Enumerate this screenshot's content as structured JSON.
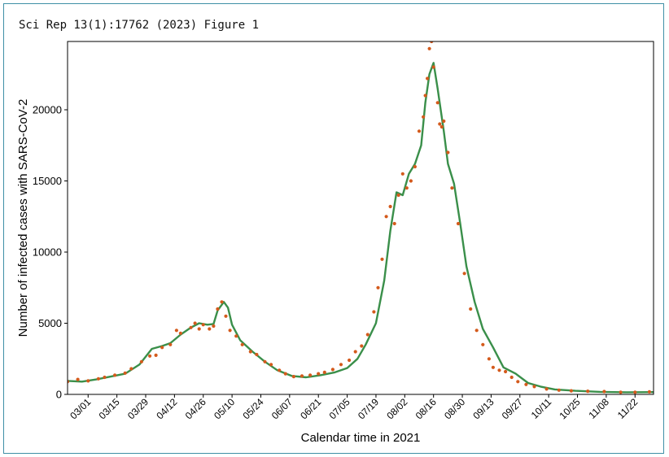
{
  "caption": "Sci Rep 13(1):17762 (2023) Figure 1",
  "chart_data": {
    "type": "line",
    "xlabel": "Calendar time in 2021",
    "ylabel": "Number of infected cases with SARS-CoV-2",
    "xlim": [
      "2021-02-19",
      "2021-12-01"
    ],
    "ylim": [
      0,
      24800
    ],
    "yticks": [
      0,
      5000,
      10000,
      15000,
      20000
    ],
    "xtick_dates": [
      "2021-03-01",
      "2021-03-15",
      "2021-03-29",
      "2021-04-12",
      "2021-04-26",
      "2021-05-10",
      "2021-05-24",
      "2021-06-07",
      "2021-06-21",
      "2021-07-05",
      "2021-07-19",
      "2021-08-02",
      "2021-08-16",
      "2021-08-30",
      "2021-09-13",
      "2021-09-27",
      "2021-10-11",
      "2021-10-25",
      "2021-11-08",
      "2021-11-22"
    ],
    "xtick_labels": [
      "03/01",
      "03/15",
      "03/29",
      "04/12",
      "04/26",
      "05/10",
      "05/24",
      "06/07",
      "06/21",
      "07/05",
      "07/19",
      "08/02",
      "08/16",
      "08/30",
      "09/13",
      "09/27",
      "10/11",
      "10/25",
      "11/08",
      "11/22"
    ],
    "grid": false,
    "colors": {
      "fitted": "#3a8f4a",
      "observed": "#d45a1c"
    },
    "series": [
      {
        "style": "line",
        "points": [
          [
            "2021-02-19",
            950
          ],
          [
            "2021-02-26",
            900
          ],
          [
            "2021-03-05",
            1050
          ],
          [
            "2021-03-12",
            1250
          ],
          [
            "2021-03-19",
            1450
          ],
          [
            "2021-03-26",
            2100
          ],
          [
            "2021-04-01",
            3200
          ],
          [
            "2021-04-06",
            3400
          ],
          [
            "2021-04-10",
            3600
          ],
          [
            "2021-04-15",
            4200
          ],
          [
            "2021-04-20",
            4700
          ],
          [
            "2021-04-24",
            5000
          ],
          [
            "2021-04-28",
            4900
          ],
          [
            "2021-05-01",
            4950
          ],
          [
            "2021-05-03",
            5900
          ],
          [
            "2021-05-06",
            6500
          ],
          [
            "2021-05-08",
            6100
          ],
          [
            "2021-05-10",
            4900
          ],
          [
            "2021-05-14",
            3800
          ],
          [
            "2021-05-20",
            3000
          ],
          [
            "2021-05-26",
            2300
          ],
          [
            "2021-06-01",
            1700
          ],
          [
            "2021-06-08",
            1300
          ],
          [
            "2021-06-15",
            1200
          ],
          [
            "2021-06-22",
            1350
          ],
          [
            "2021-06-29",
            1550
          ],
          [
            "2021-07-05",
            1850
          ],
          [
            "2021-07-10",
            2500
          ],
          [
            "2021-07-14",
            3500
          ],
          [
            "2021-07-19",
            5000
          ],
          [
            "2021-07-23",
            8000
          ],
          [
            "2021-07-26",
            11500
          ],
          [
            "2021-07-29",
            14200
          ],
          [
            "2021-08-01",
            14000
          ],
          [
            "2021-08-04",
            15500
          ],
          [
            "2021-08-07",
            16200
          ],
          [
            "2021-08-10",
            17500
          ],
          [
            "2021-08-12",
            20500
          ],
          [
            "2021-08-14",
            22500
          ],
          [
            "2021-08-16",
            23300
          ],
          [
            "2021-08-18",
            21500
          ],
          [
            "2021-08-21",
            18500
          ],
          [
            "2021-08-23",
            16200
          ],
          [
            "2021-08-26",
            14800
          ],
          [
            "2021-08-29",
            12000
          ],
          [
            "2021-09-01",
            9000
          ],
          [
            "2021-09-05",
            6500
          ],
          [
            "2021-09-09",
            4600
          ],
          [
            "2021-09-14",
            3300
          ],
          [
            "2021-09-19",
            1900
          ],
          [
            "2021-09-25",
            1450
          ],
          [
            "2021-10-01",
            800
          ],
          [
            "2021-10-07",
            550
          ],
          [
            "2021-10-14",
            350
          ],
          [
            "2021-10-24",
            250
          ],
          [
            "2021-11-05",
            180
          ],
          [
            "2021-11-18",
            150
          ],
          [
            "2021-12-01",
            160
          ]
        ]
      },
      {
        "style": "points",
        "points": [
          [
            "2021-02-19",
            900
          ],
          [
            "2021-02-24",
            1050
          ],
          [
            "2021-03-01",
            950
          ],
          [
            "2021-03-06",
            1100
          ],
          [
            "2021-03-09",
            1200
          ],
          [
            "2021-03-14",
            1350
          ],
          [
            "2021-03-19",
            1500
          ],
          [
            "2021-03-22",
            1800
          ],
          [
            "2021-03-27",
            2300
          ],
          [
            "2021-03-31",
            2700
          ],
          [
            "2021-04-03",
            2750
          ],
          [
            "2021-04-06",
            3300
          ],
          [
            "2021-04-10",
            3500
          ],
          [
            "2021-04-13",
            4500
          ],
          [
            "2021-04-15",
            4300
          ],
          [
            "2021-04-20",
            4700
          ],
          [
            "2021-04-22",
            5000
          ],
          [
            "2021-04-24",
            4600
          ],
          [
            "2021-04-26",
            4900
          ],
          [
            "2021-04-29",
            4600
          ],
          [
            "2021-05-01",
            4800
          ],
          [
            "2021-05-03",
            6000
          ],
          [
            "2021-05-05",
            6500
          ],
          [
            "2021-05-07",
            5500
          ],
          [
            "2021-05-09",
            4500
          ],
          [
            "2021-05-12",
            4100
          ],
          [
            "2021-05-15",
            3500
          ],
          [
            "2021-05-19",
            3000
          ],
          [
            "2021-05-22",
            2800
          ],
          [
            "2021-05-26",
            2300
          ],
          [
            "2021-05-29",
            2100
          ],
          [
            "2021-06-02",
            1700
          ],
          [
            "2021-06-05",
            1450
          ],
          [
            "2021-06-09",
            1250
          ],
          [
            "2021-06-13",
            1300
          ],
          [
            "2021-06-17",
            1350
          ],
          [
            "2021-06-21",
            1450
          ],
          [
            "2021-06-24",
            1550
          ],
          [
            "2021-06-28",
            1750
          ],
          [
            "2021-07-02",
            2100
          ],
          [
            "2021-07-06",
            2400
          ],
          [
            "2021-07-09",
            3000
          ],
          [
            "2021-07-12",
            3400
          ],
          [
            "2021-07-15",
            4200
          ],
          [
            "2021-07-18",
            5800
          ],
          [
            "2021-07-20",
            7500
          ],
          [
            "2021-07-22",
            9500
          ],
          [
            "2021-07-24",
            12500
          ],
          [
            "2021-07-26",
            13200
          ],
          [
            "2021-07-28",
            12000
          ],
          [
            "2021-07-30",
            14000
          ],
          [
            "2021-08-01",
            15500
          ],
          [
            "2021-08-03",
            14500
          ],
          [
            "2021-08-05",
            15000
          ],
          [
            "2021-08-07",
            16000
          ],
          [
            "2021-08-09",
            18500
          ],
          [
            "2021-08-11",
            19500
          ],
          [
            "2021-08-12",
            21000
          ],
          [
            "2021-08-13",
            22200
          ],
          [
            "2021-08-14",
            24300
          ],
          [
            "2021-08-15",
            24800
          ],
          [
            "2021-08-16",
            23000
          ],
          [
            "2021-08-18",
            20500
          ],
          [
            "2021-08-19",
            19000
          ],
          [
            "2021-08-20",
            18800
          ],
          [
            "2021-08-21",
            19200
          ],
          [
            "2021-08-23",
            17000
          ],
          [
            "2021-08-25",
            14500
          ],
          [
            "2021-08-28",
            12000
          ],
          [
            "2021-08-31",
            8500
          ],
          [
            "2021-09-03",
            6000
          ],
          [
            "2021-09-06",
            4500
          ],
          [
            "2021-09-09",
            3500
          ],
          [
            "2021-09-12",
            2500
          ],
          [
            "2021-09-14",
            1900
          ],
          [
            "2021-09-17",
            1700
          ],
          [
            "2021-09-20",
            1600
          ],
          [
            "2021-09-23",
            1200
          ],
          [
            "2021-09-26",
            900
          ],
          [
            "2021-09-30",
            700
          ],
          [
            "2021-10-04",
            550
          ],
          [
            "2021-10-10",
            380
          ],
          [
            "2021-10-16",
            300
          ],
          [
            "2021-10-22",
            250
          ],
          [
            "2021-10-30",
            220
          ],
          [
            "2021-11-07",
            200
          ],
          [
            "2021-11-15",
            150
          ],
          [
            "2021-11-22",
            150
          ],
          [
            "2021-11-29",
            180
          ]
        ]
      }
    ]
  }
}
